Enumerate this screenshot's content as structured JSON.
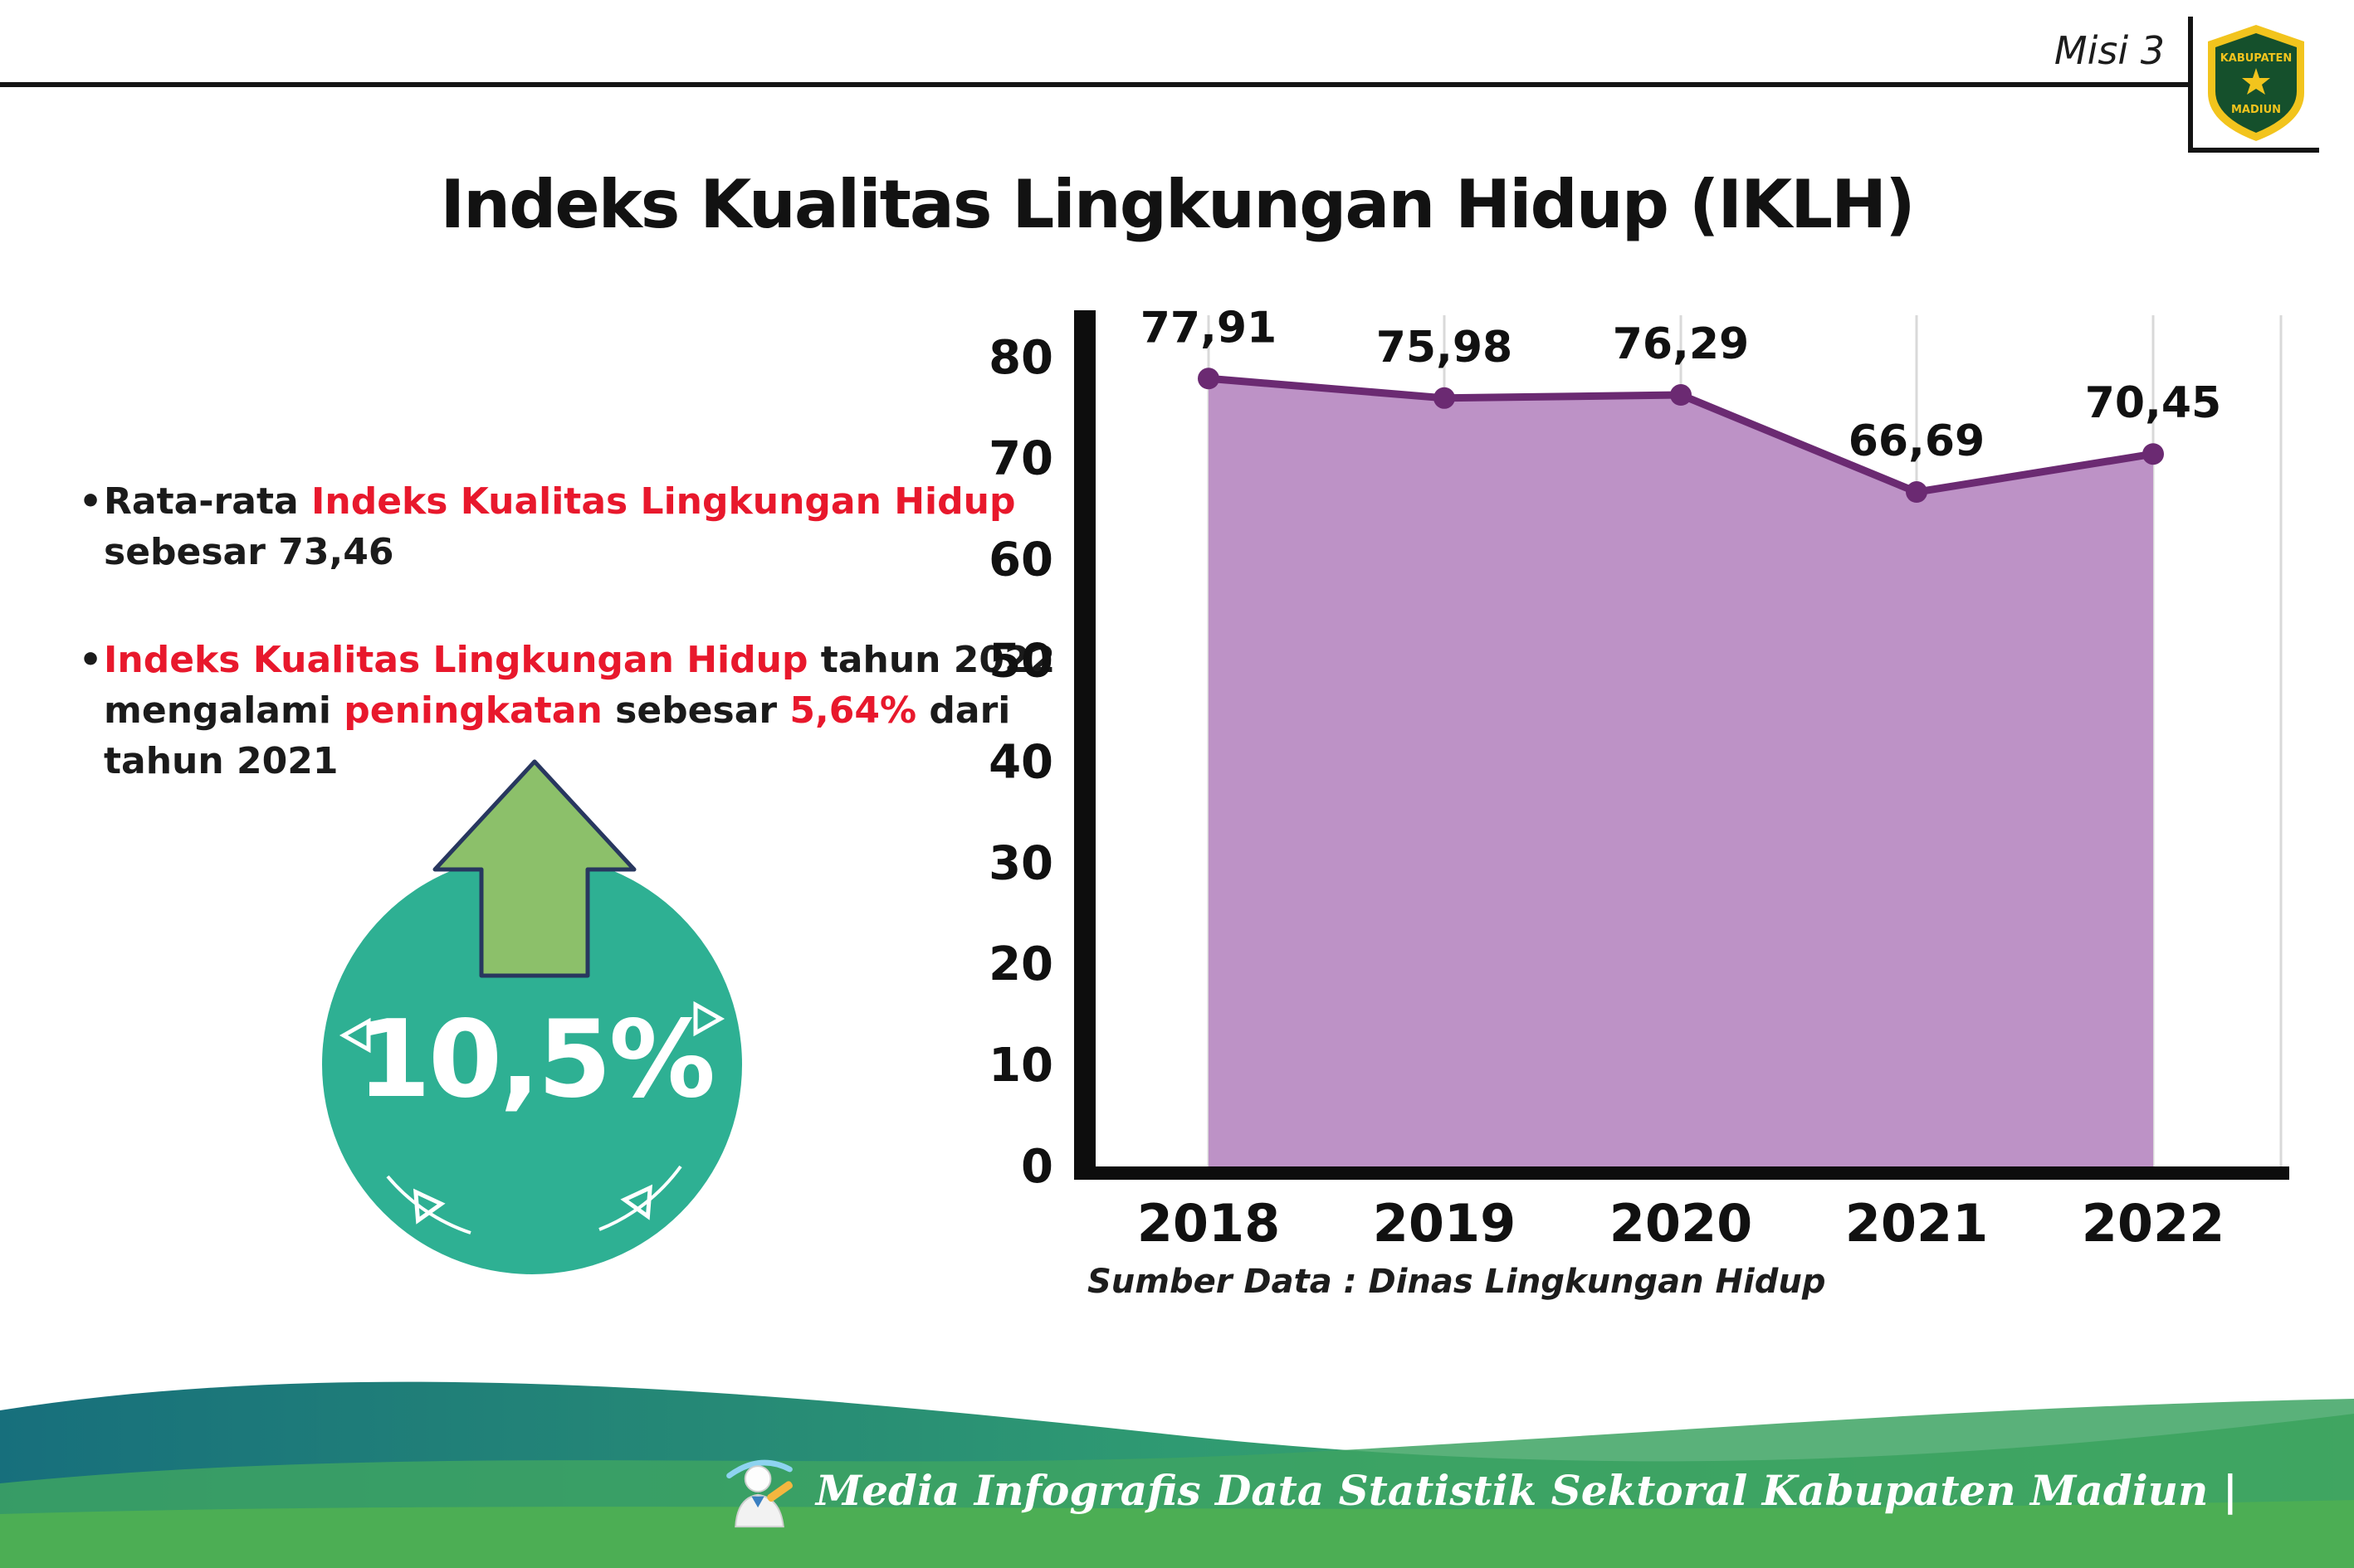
{
  "colors": {
    "accent_red": "#e8182c",
    "footer_teal": "#176f7c",
    "footer_mid": "#2f9a72",
    "footer_green": "#4fb15a",
    "footer_band": "#4cae54"
  },
  "header": {
    "misi_label": "Misi 3",
    "title": "Indeks Kualitas Lingkungan Hidup (IKLH)"
  },
  "logo": {
    "text_top": "KABUPATEN",
    "text_bottom": "MADIUN"
  },
  "bullets": {
    "marker": "•",
    "b1": {
      "t1": "Rata-rata ",
      "r1": "Indeks Kualitas Lingkungan Hidup",
      "t2": " sebesar 73,46"
    },
    "b2": {
      "r1": "Indeks Kualitas Lingkungan Hidup",
      "t1": " tahun 2022 mengalami ",
      "r2": "peningkatan",
      "t2": " sebesar ",
      "r3": "5,64%",
      "t3": " dari tahun 2021"
    }
  },
  "badge": {
    "value": "10,5%",
    "circle_color": "#2eb093",
    "arrow_color": "#8cc06a"
  },
  "chart_data": {
    "type": "area",
    "title": "Indeks Kualitas Lingkungan Hidup (IKLH) 2018-2022",
    "categories": [
      "2018",
      "2019",
      "2020",
      "2021",
      "2022"
    ],
    "values": [
      77.91,
      75.98,
      76.29,
      66.69,
      70.45
    ],
    "value_labels": [
      "77,91",
      "75,98",
      "76,29",
      "66,69",
      "70,45"
    ],
    "xlabel": "",
    "ylabel": "",
    "ylim": [
      0,
      80
    ],
    "yticks": [
      0,
      10,
      20,
      30,
      40,
      50,
      60,
      70,
      80
    ],
    "grid": "vertical",
    "legend": "none",
    "fill_color": "#bd92c6",
    "line_color": "#6b2a72",
    "source_label": "Sumber Data : Dinas Lingkungan Hidup"
  },
  "footer": {
    "text": "Media Infografis Data Statistik Sektoral Kabupaten Madiun |"
  }
}
